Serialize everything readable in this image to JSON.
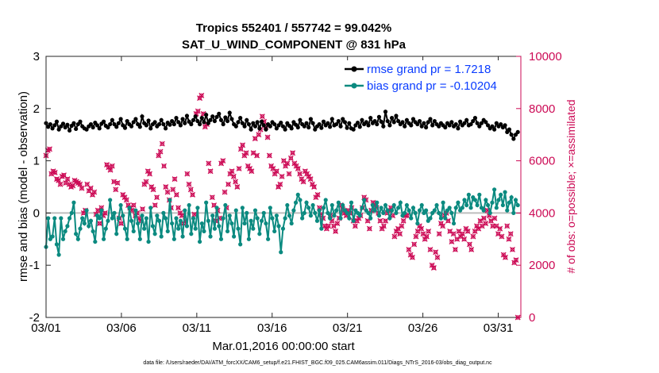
{
  "chart_data": {
    "type": "line",
    "title": "Tropics 552401 / 557742 = 99.042%",
    "subtitle": "SAT_U_WIND_COMPONENT @ 831 hPa",
    "xlabel": "Mar.01,2016 00:00:00 start",
    "ylabel": "rmse and bias (model - observation)",
    "ylabel_right": "# of obs: o=possible; ×=assimilated",
    "footnote": "data file: /Users/raeder/DAI/ATM_forcXX/CAM6_setup/f.e21.FHIST_BGC.f09_025.CAM6assim.011/Diags_NTrS_2016-03/obs_diag_output.nc",
    "x_tick_labels": [
      "03/01",
      "03/06",
      "03/11",
      "03/16",
      "03/21",
      "03/26",
      "03/31"
    ],
    "x_tick_days": [
      0,
      5,
      10,
      15,
      20,
      25,
      30
    ],
    "xlim": [
      0,
      31.5
    ],
    "ylim": [
      -2,
      3
    ],
    "y_ticks": [
      -2,
      -1,
      0,
      1,
      2,
      3
    ],
    "ylim_right": [
      0,
      10000
    ],
    "y_ticks_right": [
      0,
      2000,
      4000,
      6000,
      8000,
      10000
    ],
    "zero_line": 0,
    "legend_position": "top-right",
    "series": [
      {
        "name": "rmse grand pr = 1.7218",
        "axis": "left",
        "color": "#000000",
        "values": [
          1.72,
          1.65,
          1.7,
          1.62,
          1.68,
          1.75,
          1.6,
          1.66,
          1.71,
          1.64,
          1.69,
          1.58,
          1.67,
          1.72,
          1.61,
          1.7,
          1.75,
          1.66,
          1.62,
          1.6,
          1.66,
          1.7,
          1.64,
          1.73,
          1.68,
          1.62,
          1.71,
          1.75,
          1.67,
          1.64,
          1.7,
          1.78,
          1.7,
          1.65,
          1.72,
          1.8,
          1.68,
          1.63,
          1.76,
          1.7,
          1.66,
          1.74,
          1.8,
          1.7,
          1.65,
          1.85,
          1.72,
          1.68,
          1.77,
          1.62,
          1.7,
          1.74,
          1.66,
          1.7,
          1.78,
          1.7,
          1.62,
          1.73,
          1.69,
          1.76,
          1.7,
          1.82,
          1.74,
          1.68,
          1.8,
          1.72,
          1.86,
          1.75,
          1.7,
          1.78,
          1.85,
          1.76,
          1.7,
          1.82,
          1.74,
          1.88,
          1.72,
          1.78,
          1.85,
          1.76,
          1.84,
          1.9,
          1.78,
          1.7,
          1.83,
          1.76,
          1.92,
          1.8,
          1.7,
          1.66,
          1.74,
          1.82,
          1.72,
          1.66,
          1.78,
          1.7,
          1.6,
          1.72,
          1.66,
          1.74,
          1.62,
          1.75,
          1.68,
          1.6,
          1.7,
          1.66,
          1.74,
          1.7,
          1.62,
          1.68,
          1.73,
          1.66,
          1.6,
          1.72,
          1.67,
          1.62,
          1.74,
          1.69,
          1.64,
          1.78,
          1.7,
          1.66,
          1.72,
          1.64,
          1.8,
          1.72,
          1.6,
          1.66,
          1.7,
          1.63,
          1.75,
          1.68,
          1.72,
          1.65,
          1.8,
          1.68,
          1.7,
          1.76,
          1.66,
          1.8,
          1.74,
          1.63,
          1.72,
          1.62,
          1.6,
          1.68,
          1.73,
          1.65,
          1.78,
          1.7,
          1.74,
          1.68,
          1.82,
          1.72,
          1.76,
          1.7,
          1.84,
          1.75,
          1.66,
          1.94,
          1.76,
          1.68,
          1.82,
          1.74,
          1.86,
          1.76,
          1.7,
          1.74,
          1.66,
          1.78,
          1.72,
          1.68,
          1.8,
          1.74,
          1.7,
          1.76,
          1.66,
          1.72,
          1.64,
          1.74,
          1.8,
          1.68,
          1.76,
          1.7,
          1.66,
          1.72,
          1.68,
          1.64,
          1.72,
          1.68,
          1.74,
          1.66,
          1.7,
          1.62,
          1.75,
          1.68,
          1.72,
          1.78,
          1.68,
          1.7,
          1.76,
          1.82,
          1.72,
          1.66,
          1.72,
          1.78,
          1.74,
          1.68,
          1.62,
          1.66,
          1.6,
          1.72,
          1.66,
          1.7,
          1.64,
          1.68,
          1.55,
          1.6,
          1.5,
          1.42,
          1.5,
          1.55
        ]
      },
      {
        "name": "bias grand pr = -0.10204",
        "axis": "left",
        "color": "#0b8a80",
        "values": [
          -0.65,
          -0.1,
          -0.5,
          -0.45,
          -0.1,
          -0.6,
          -0.8,
          -0.1,
          -0.5,
          -0.35,
          -0.25,
          -0.1,
          0.0,
          0.2,
          -0.4,
          -0.5,
          -0.3,
          -0.1,
          -0.2,
          0.05,
          -0.25,
          -0.15,
          -0.35,
          -0.55,
          -0.05,
          -0.1,
          0.05,
          -0.5,
          -0.3,
          -0.15,
          0.25,
          -0.1,
          0.0,
          -0.4,
          -0.1,
          0.15,
          -0.05,
          -0.3,
          -0.5,
          0.1,
          -0.15,
          -0.35,
          0.05,
          -0.2,
          -0.5,
          -0.05,
          -0.3,
          -0.1,
          -0.55,
          0.1,
          -0.25,
          -0.4,
          -0.05,
          -0.15,
          -0.45,
          0.0,
          -0.1,
          -0.35,
          0.25,
          -0.2,
          -0.5,
          -0.1,
          -0.3,
          -0.15,
          -0.45,
          0.05,
          -0.25,
          0.15,
          -0.4,
          -0.1,
          -0.3,
          0.1,
          -0.55,
          -0.2,
          -0.35,
          0.2,
          -0.15,
          -0.45,
          -0.05,
          -0.3,
          0.1,
          -0.25,
          -0.5,
          -0.1,
          0.15,
          -0.35,
          -0.05,
          -0.2,
          -0.45,
          0.05,
          -0.3,
          -0.6,
          0.1,
          -0.2,
          0.0,
          -0.5,
          -0.15,
          -0.3,
          0.05,
          -0.1,
          -0.4,
          -0.15,
          0.0,
          -0.2,
          -0.5,
          0.1,
          -0.1,
          -0.35,
          -0.05,
          -0.25,
          -0.75,
          -0.3,
          -0.1,
          0.15,
          -0.05,
          -0.2,
          0.05,
          0.2,
          0.35,
          0.25,
          -0.1,
          0.0,
          0.2,
          0.1,
          -0.05,
          0.15,
          0.0,
          -0.15,
          0.05,
          -0.3,
          0.1,
          0.25,
          0.0,
          -0.1,
          0.15,
          -0.05,
          0.05,
          0.2,
          -0.1,
          0.15,
          0.05,
          0.0,
          -0.1,
          0.2,
          -0.15,
          0.05,
          0.0,
          -0.05,
          0.1,
          0.25,
          0.05,
          0.0,
          -0.1,
          0.15,
          0.05,
          0.2,
          -0.05,
          0.1,
          0.0,
          0.15,
          0.05,
          -0.1,
          0.05,
          0.15,
          0.0,
          0.1,
          0.2,
          -0.05,
          0.0,
          0.15,
          0.05,
          -0.1,
          0.1,
          0.0,
          -0.2,
          0.05,
          0.15,
          0.0,
          0.05,
          -0.15,
          -0.1,
          0.0,
          0.05,
          0.15,
          0.0,
          -0.1,
          0.2,
          -0.1,
          0.05,
          0.1,
          0.0,
          -0.2,
          0.1,
          0.2,
          0.05,
          0.1,
          0.25,
          0.15,
          0.35,
          0.1,
          0.3,
          0.25,
          0.15,
          0.35,
          0.1,
          0.05,
          0.25,
          0.15,
          0.0,
          0.2,
          0.45,
          0.1,
          0.25,
          0.35,
          0.15,
          0.4,
          0.05,
          0.2,
          0.3,
          0.0,
          0.25,
          0.15
        ]
      },
      {
        "name": "# of obs assimilated",
        "axis": "right",
        "color": "#cc0a55",
        "values": [
          6200,
          6400,
          6450,
          5500,
          5600,
          5550,
          5300,
          5250,
          5100,
          5400,
          5450,
          5150,
          5300,
          5100,
          5000,
          5050,
          5250,
          5200,
          5150,
          5100,
          4950,
          4000,
          4100,
          5100,
          4850,
          4950,
          4700,
          4800,
          3950,
          4100,
          3600,
          4200,
          3900,
          4000,
          5850,
          5750,
          5650,
          5800,
          5200,
          4900,
          5150,
          3800,
          3600,
          4700,
          4600,
          4500,
          4300,
          4200,
          4100,
          4300,
          3900,
          4000,
          3800,
          3700,
          4150,
          5100,
          5200,
          5600,
          5500,
          5000,
          4900,
          4300,
          4600,
          6200,
          6350,
          6650,
          5800,
          5000,
          4800,
          4500,
          4200,
          4900,
          5300,
          4700,
          4200,
          4000,
          3900,
          3600,
          3700,
          5500,
          5100,
          4900,
          4700,
          3950,
          7800,
          7900,
          8400,
          8500,
          7800,
          7300,
          7400,
          5900,
          5600,
          4600,
          4300,
          3700,
          4100,
          3800,
          5900,
          6000,
          4800,
          4200,
          5100,
          5500,
          5600,
          5400,
          5200,
          5000,
          5700,
          6450,
          6600,
          6200,
          6300,
          5800,
          5700,
          5600,
          6300,
          6850,
          6200,
          7000,
          7200,
          7700,
          7500,
          7300,
          6900,
          6200,
          5800,
          5700,
          5500,
          5600,
          5000,
          5100,
          5400,
          6000,
          5800,
          5900,
          5500,
          6100,
          6300,
          5900,
          5800,
          5700,
          5500,
          5300,
          5200,
          5600,
          5500,
          5400,
          5300,
          5100,
          5000,
          4600,
          4700,
          4200,
          3950,
          3800,
          3500,
          3400,
          3500,
          3900,
          3700,
          3500,
          3300,
          3600,
          3800,
          4300,
          4150,
          4000,
          3900,
          4100,
          4000,
          4200,
          3700,
          3500,
          3700,
          3800,
          3900,
          4200,
          4600,
          4500,
          3700,
          3400,
          4100,
          4400,
          4300,
          4200,
          4000,
          3700,
          3400,
          3500,
          3700,
          4000,
          4100,
          4200,
          3900,
          3100,
          3300,
          3400,
          3200,
          3500,
          3700,
          3900,
          3900,
          2600,
          2400,
          2300,
          2800,
          3100,
          3300,
          3500,
          3400,
          3200,
          3000,
          3100,
          3300,
          2600,
          2000,
          1900,
          2500,
          2300,
          3200,
          3600,
          3500,
          3900,
          4000,
          3700,
          3300,
          2900,
          3200,
          2600,
          3000,
          3300,
          3100,
          3200,
          3000,
          3400,
          3300,
          2800,
          2600,
          3100,
          3300,
          3500,
          3400,
          3700,
          3500,
          3800,
          3600,
          4100,
          3900,
          3700,
          3500,
          3800,
          3500,
          3200,
          3400,
          3100,
          2400,
          2300,
          3500,
          3000,
          3200,
          2600,
          2100,
          2200,
          0
        ]
      }
    ]
  }
}
